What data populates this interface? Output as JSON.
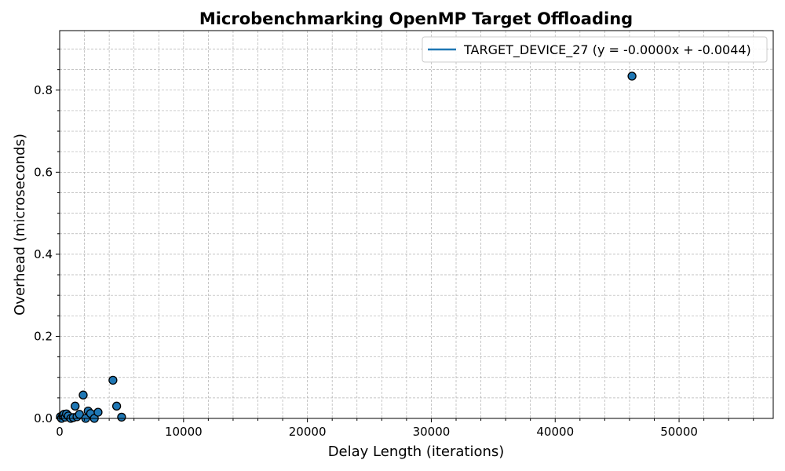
{
  "chart_data": {
    "type": "scatter",
    "title": "Microbenchmarking OpenMP Target Offloading",
    "xlabel": "Delay Length (iterations)",
    "ylabel": "Overhead (microseconds)",
    "xlim": [
      0,
      57600
    ],
    "ylim": [
      0,
      0.945
    ],
    "x_ticks": [
      0,
      10000,
      20000,
      30000,
      40000,
      50000
    ],
    "x_tick_labels": [
      "0",
      "10000",
      "20000",
      "30000",
      "40000",
      "50000"
    ],
    "y_ticks": [
      0.0,
      0.2,
      0.4,
      0.6,
      0.8
    ],
    "y_tick_labels": [
      "0.0",
      "0.2",
      "0.4",
      "0.6",
      "0.8"
    ],
    "x_minor_step": 2000,
    "y_minor_step": 0.05,
    "grid": true,
    "legend_position": "top-right",
    "colors": {
      "points": "#1f77b4",
      "point_edge": "#000000",
      "fit_line": "#1f77b4",
      "grid": "#b0b0b0"
    },
    "series": [
      {
        "name": "TARGET_DEVICE_27 (y = -0.0000x + -0.0044)",
        "kind": "fit-line",
        "slope": 0.0,
        "intercept": -0.0044
      },
      {
        "kind": "scatter",
        "points": [
          {
            "x": 60,
            "y": 0.004
          },
          {
            "x": 150,
            "y": 0.0
          },
          {
            "x": 250,
            "y": 0.007
          },
          {
            "x": 350,
            "y": 0.01
          },
          {
            "x": 450,
            "y": 0.003
          },
          {
            "x": 550,
            "y": 0.011
          },
          {
            "x": 700,
            "y": 0.006
          },
          {
            "x": 900,
            "y": 0.0
          },
          {
            "x": 1100,
            "y": 0.002
          },
          {
            "x": 1250,
            "y": 0.03
          },
          {
            "x": 1400,
            "y": 0.004
          },
          {
            "x": 1600,
            "y": 0.01
          },
          {
            "x": 1900,
            "y": 0.057
          },
          {
            "x": 2100,
            "y": 0.0
          },
          {
            "x": 2300,
            "y": 0.018
          },
          {
            "x": 2500,
            "y": 0.012
          },
          {
            "x": 2800,
            "y": 0.0
          },
          {
            "x": 3100,
            "y": 0.015
          },
          {
            "x": 4300,
            "y": 0.093
          },
          {
            "x": 4600,
            "y": 0.03
          },
          {
            "x": 5000,
            "y": 0.003
          },
          {
            "x": 46200,
            "y": 0.834
          }
        ]
      }
    ]
  }
}
